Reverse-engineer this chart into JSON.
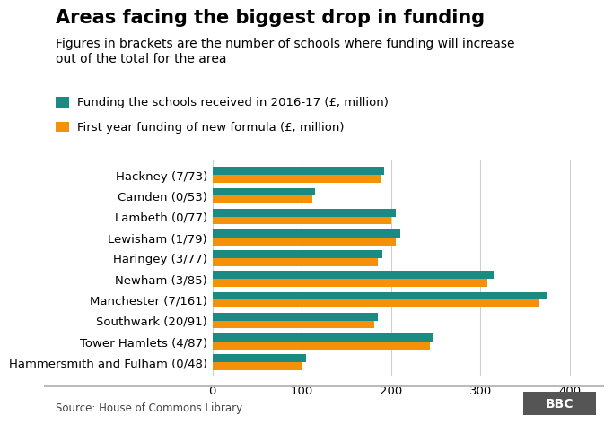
{
  "title": "Areas facing the biggest drop in funding",
  "subtitle": "Figures in brackets are the number of schools where funding will increase\nout of the total for the area",
  "legend": [
    "Funding the schools received in 2016-17 (£, million)",
    "First year funding of new formula (£, million)"
  ],
  "categories": [
    "Hackney (7/73)",
    "Camden (0/53)",
    "Lambeth (0/77)",
    "Lewisham (1/79)",
    "Haringey (3/77)",
    "Newham (3/85)",
    "Manchester (7/161)",
    "Southwark (20/91)",
    "Tower Hamlets (4/87)",
    "Hammersmith and Fulham (0/48)"
  ],
  "teal_values": [
    192,
    115,
    205,
    210,
    190,
    315,
    375,
    185,
    248,
    105
  ],
  "orange_values": [
    188,
    112,
    200,
    205,
    185,
    308,
    365,
    181,
    244,
    100
  ],
  "teal_color": "#1a8a82",
  "orange_color": "#f5900a",
  "background_color": "#ffffff",
  "source_text": "Source: House of Commons Library",
  "xlim": [
    0,
    420
  ],
  "xticks": [
    0,
    100,
    200,
    300,
    400
  ],
  "bar_height": 0.38,
  "title_fontsize": 15,
  "subtitle_fontsize": 10,
  "label_fontsize": 9.5,
  "tick_fontsize": 9.5,
  "legend_fontsize": 9.5,
  "source_fontsize": 8.5
}
